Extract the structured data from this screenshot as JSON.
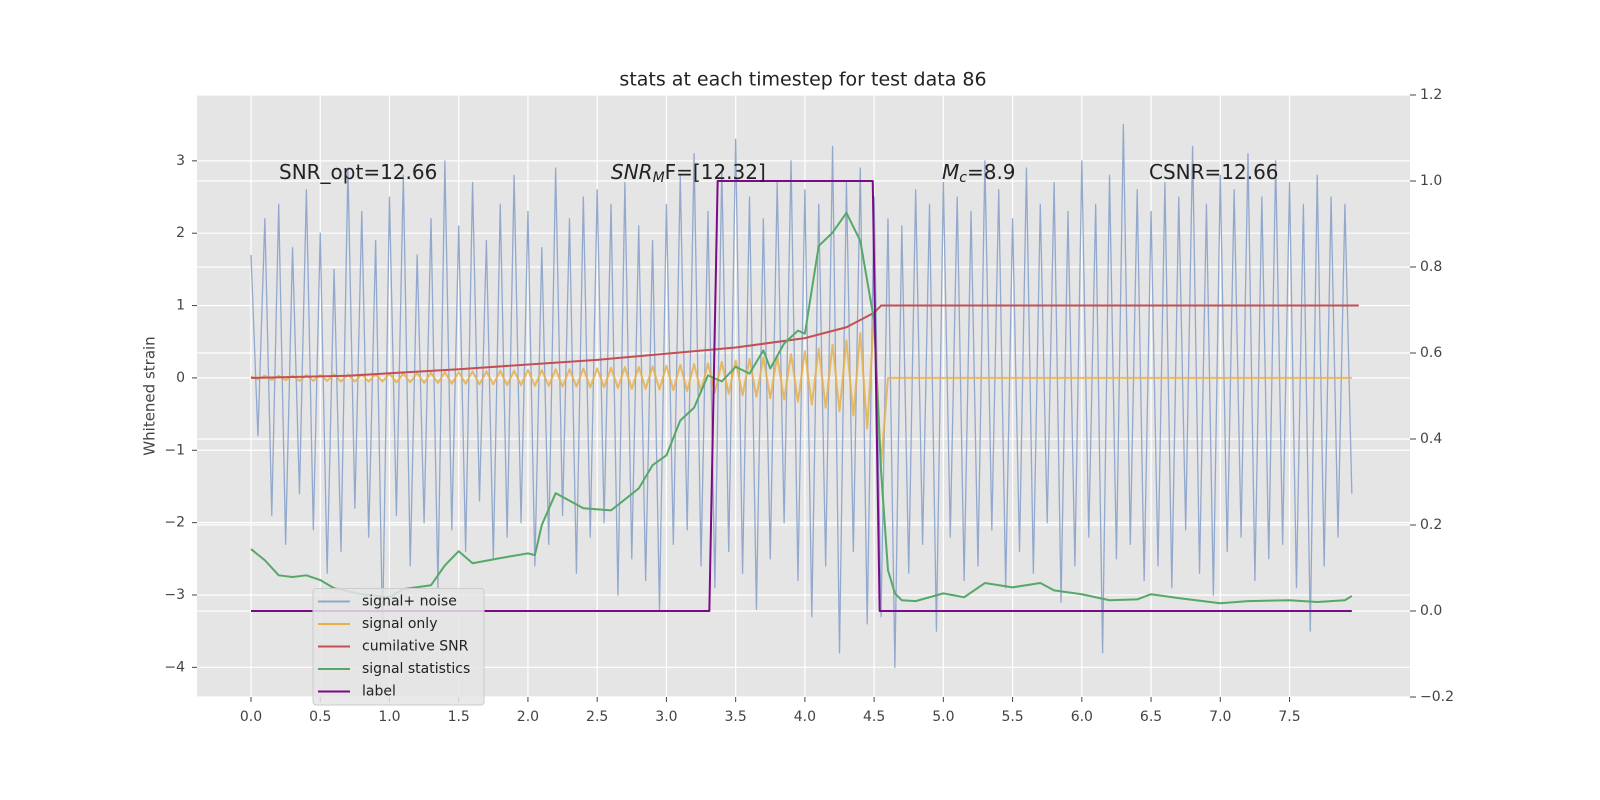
{
  "chart_data": {
    "type": "line",
    "title": "stats at each timestep for test data 86",
    "ylabel": "Whitened strain",
    "annotations": [
      {
        "text": "SNR_opt=12.66"
      },
      {
        "text": "SNR",
        "sub": "M",
        "rest": "F=[12.32]"
      },
      {
        "text": "M",
        "sub": "c",
        "rest": "=8.9"
      },
      {
        "text": "CSNR=12.66"
      }
    ],
    "x": [
      0,
      0.05,
      0.1,
      0.15,
      0.2,
      0.25,
      0.3,
      0.35,
      0.4,
      0.45,
      0.5,
      0.55,
      0.6,
      0.65,
      0.7,
      0.75,
      0.8,
      0.85,
      0.9,
      0.95,
      1,
      1.05,
      1.1,
      1.15,
      1.2,
      1.25,
      1.3,
      1.35,
      1.4,
      1.45,
      1.5,
      1.55,
      1.6,
      1.65,
      1.7,
      1.75,
      1.8,
      1.85,
      1.9,
      1.95,
      2,
      2.05,
      2.1,
      2.15,
      2.2,
      2.25,
      2.3,
      2.35,
      2.4,
      2.45,
      2.5,
      2.55,
      2.6,
      2.65,
      2.7,
      2.75,
      2.8,
      2.85,
      2.9,
      2.95,
      3,
      3.05,
      3.1,
      3.15,
      3.2,
      3.25,
      3.3,
      3.35,
      3.4,
      3.45,
      3.5,
      3.55,
      3.6,
      3.65,
      3.7,
      3.75,
      3.8,
      3.85,
      3.9,
      3.95,
      4,
      4.05,
      4.1,
      4.15,
      4.2,
      4.25,
      4.3,
      4.35,
      4.4,
      4.45,
      4.5,
      4.55,
      4.6,
      4.65,
      4.7,
      4.75,
      4.8,
      4.85,
      4.9,
      4.95,
      5,
      5.05,
      5.1,
      5.15,
      5.2,
      5.25,
      5.3,
      5.35,
      5.4,
      5.45,
      5.5,
      5.55,
      5.6,
      5.65,
      5.7,
      5.75,
      5.8,
      5.85,
      5.9,
      5.95,
      6,
      6.05,
      6.1,
      6.15,
      6.2,
      6.25,
      6.3,
      6.35,
      6.4,
      6.45,
      6.5,
      6.55,
      6.6,
      6.65,
      6.7,
      6.75,
      6.8,
      6.85,
      6.9,
      6.95,
      7,
      7.05,
      7.1,
      7.15,
      7.2,
      7.25,
      7.3,
      7.35,
      7.4,
      7.45,
      7.5,
      7.55,
      7.6,
      7.65,
      7.7,
      7.75,
      7.8,
      7.85,
      7.9,
      7.95
    ],
    "series": [
      {
        "name": "signal+ noise",
        "color": "#92a8cd",
        "axis": "y",
        "values": [
          1.7,
          -0.8,
          2.2,
          -1.9,
          2.4,
          -2.3,
          1.8,
          -1.6,
          2.6,
          -2.1,
          2.0,
          -2.7,
          1.5,
          -2.4,
          2.9,
          -1.8,
          2.3,
          -2.2,
          1.9,
          -3.5,
          2.5,
          -1.9,
          2.8,
          -2.6,
          1.7,
          -2.0,
          2.2,
          -2.9,
          3.0,
          -2.1,
          2.1,
          -2.4,
          2.7,
          -1.7,
          1.9,
          -2.5,
          2.4,
          -2.2,
          2.8,
          -2.0,
          2.3,
          -2.6,
          1.8,
          -2.3,
          2.9,
          -1.9,
          2.2,
          -2.7,
          2.5,
          -2.2,
          2.6,
          -2.0,
          2.4,
          -3.0,
          2.7,
          -2.5,
          2.1,
          -2.8,
          1.9,
          -3.2,
          2.4,
          -2.3,
          2.8,
          -2.1,
          3.1,
          -2.6,
          2.3,
          -2.9,
          2.9,
          -2.4,
          3.3,
          -2.7,
          2.5,
          -3.2,
          2.2,
          -2.5,
          2.7,
          -2.0,
          3.0,
          -2.8,
          2.6,
          -3.3,
          2.4,
          -2.6,
          3.2,
          -3.8,
          2.7,
          -2.4,
          2.9,
          -3.4,
          2.5,
          -3.3,
          2.2,
          -4.0,
          2.1,
          -2.7,
          2.6,
          -2.3,
          2.4,
          -3.5,
          2.7,
          -2.2,
          2.5,
          -2.8,
          2.3,
          -2.6,
          3.0,
          -2.1,
          2.6,
          -2.9,
          2.2,
          -2.4,
          2.9,
          -2.7,
          2.4,
          -2.0,
          2.7,
          -3.1,
          2.3,
          -2.6,
          3.0,
          -2.2,
          2.4,
          -3.8,
          2.8,
          -2.5,
          3.5,
          -2.3,
          2.6,
          -2.8,
          2.3,
          -2.6,
          2.7,
          -2.9,
          2.5,
          -2.1,
          3.2,
          -2.7,
          2.4,
          -3.0,
          2.8,
          -2.4,
          2.6,
          -2.2,
          3.1,
          -2.8,
          2.5,
          -2.5,
          3.0,
          -2.3,
          2.7,
          -2.9,
          2.4,
          -3.5,
          2.8,
          -2.6,
          2.5,
          -2.2,
          2.4,
          -1.6
        ]
      },
      {
        "name": "signal only",
        "color": "#e8b04a",
        "axis": "y",
        "values": [
          0.02,
          -0.02,
          0.03,
          -0.03,
          0.03,
          -0.03,
          0.03,
          -0.04,
          0.04,
          -0.04,
          0.04,
          -0.04,
          0.05,
          -0.05,
          0.05,
          -0.05,
          0.05,
          -0.05,
          0.05,
          -0.05,
          0.06,
          -0.06,
          0.06,
          -0.06,
          0.07,
          -0.07,
          0.07,
          -0.07,
          0.08,
          -0.08,
          0.08,
          -0.08,
          0.09,
          -0.09,
          0.09,
          -0.09,
          0.1,
          -0.1,
          0.1,
          -0.1,
          0.11,
          -0.11,
          0.11,
          -0.11,
          0.12,
          -0.12,
          0.12,
          -0.12,
          0.13,
          -0.13,
          0.13,
          -0.13,
          0.14,
          -0.14,
          0.15,
          -0.15,
          0.15,
          -0.15,
          0.16,
          -0.16,
          0.17,
          -0.17,
          0.18,
          -0.18,
          0.19,
          -0.19,
          0.2,
          -0.2,
          0.22,
          -0.22,
          0.24,
          -0.24,
          0.26,
          -0.26,
          0.28,
          -0.28,
          0.3,
          -0.3,
          0.33,
          -0.33,
          0.37,
          -0.37,
          0.41,
          -0.41,
          0.46,
          -0.46,
          0.52,
          -0.52,
          0.62,
          -0.7,
          0.85,
          -1.2,
          0,
          0,
          0,
          0,
          0,
          0,
          0,
          0,
          0,
          0,
          0,
          0,
          0,
          0,
          0,
          0,
          0,
          0,
          0,
          0,
          0,
          0,
          0,
          0,
          0,
          0,
          0,
          0,
          0,
          0,
          0,
          0,
          0,
          0,
          0,
          0,
          0,
          0,
          0,
          0,
          0,
          0,
          0,
          0,
          0,
          0,
          0,
          0,
          0,
          0,
          0,
          0,
          0,
          0,
          0,
          0,
          0,
          0,
          0,
          0,
          0,
          0,
          0,
          0,
          0,
          0,
          0,
          0
        ]
      },
      {
        "name": "cumilative SNR",
        "color": "#c44e52",
        "axis": "y",
        "x": [
          0,
          0.7,
          1.5,
          2.5,
          3.5,
          4.0,
          4.3,
          4.5,
          4.55,
          8.0
        ],
        "values": [
          0,
          0.03,
          0.12,
          0.25,
          0.42,
          0.55,
          0.7,
          0.9,
          1.0,
          1.0
        ]
      },
      {
        "name": "signal statistics",
        "color": "#55a868",
        "axis": "y2",
        "x": [
          0,
          0.1,
          0.2,
          0.3,
          0.4,
          0.5,
          0.6,
          0.8,
          1.0,
          1.1,
          1.3,
          1.4,
          1.5,
          1.6,
          1.8,
          2.0,
          2.05,
          2.1,
          2.2,
          2.4,
          2.6,
          2.8,
          2.9,
          3.0,
          3.1,
          3.2,
          3.3,
          3.4,
          3.5,
          3.6,
          3.7,
          3.75,
          3.85,
          3.95,
          4.0,
          4.1,
          4.2,
          4.3,
          4.4,
          4.5,
          4.55,
          4.6,
          4.65,
          4.7,
          4.8,
          4.9,
          5.0,
          5.15,
          5.3,
          5.5,
          5.7,
          5.8,
          6.0,
          6.2,
          6.4,
          6.5,
          6.7,
          7.0,
          7.2,
          7.5,
          7.7,
          7.9,
          7.95
        ],
        "values": [
          0.144,
          0.118,
          0.083,
          0.079,
          0.083,
          0.072,
          0.053,
          0.039,
          0.032,
          0.051,
          0.06,
          0.106,
          0.139,
          0.111,
          0.123,
          0.134,
          0.13,
          0.2,
          0.274,
          0.239,
          0.234,
          0.285,
          0.339,
          0.362,
          0.443,
          0.473,
          0.548,
          0.534,
          0.568,
          0.552,
          0.606,
          0.564,
          0.622,
          0.652,
          0.645,
          0.849,
          0.88,
          0.926,
          0.861,
          0.675,
          0.327,
          0.095,
          0.041,
          0.025,
          0.023,
          0.032,
          0.041,
          0.032,
          0.065,
          0.055,
          0.065,
          0.048,
          0.039,
          0.025,
          0.027,
          0.039,
          0.03,
          0.018,
          0.023,
          0.025,
          0.021,
          0.025,
          0.035
        ]
      },
      {
        "name": "label",
        "color": "#7b0a86",
        "axis": "y2",
        "x": [
          0,
          3.31,
          3.37,
          4.49,
          4.54,
          7.95
        ],
        "values": [
          0,
          0,
          1,
          1,
          0,
          0
        ]
      }
    ],
    "xlim": [
      -0.39,
      8.37
    ],
    "ylim": [
      -4.41,
      3.91
    ],
    "y2lim": [
      -0.2,
      1.2
    ],
    "xticks": [
      {
        "value": 0,
        "label": "0.0"
      },
      0.5,
      {
        "value": 1,
        "label": "1.0"
      },
      1.5,
      {
        "value": 2,
        "label": "2.0"
      },
      2.5,
      {
        "value": 3,
        "label": "3.0"
      },
      3.5,
      {
        "value": 4,
        "label": "4.0"
      },
      4.5,
      {
        "value": 5,
        "label": "5.0"
      },
      5.5,
      {
        "value": 6,
        "label": "6.0"
      },
      6.5,
      {
        "value": 7,
        "label": "7.0"
      },
      7.5
    ],
    "yticks": [
      {
        "value": -4,
        "label": "−4"
      },
      {
        "value": -3,
        "label": "−3"
      },
      {
        "value": -2,
        "label": "−2"
      },
      {
        "value": -1,
        "label": "−1"
      },
      0,
      1,
      2,
      3
    ],
    "y2ticks": [
      {
        "value": -0.2,
        "label": "−0.2"
      },
      {
        "value": 0,
        "label": "0.0"
      },
      0.2,
      0.4,
      0.6,
      0.8,
      {
        "value": 1,
        "label": "1.0"
      },
      1.2
    ],
    "grid": true,
    "legend_loc": "lower left"
  }
}
